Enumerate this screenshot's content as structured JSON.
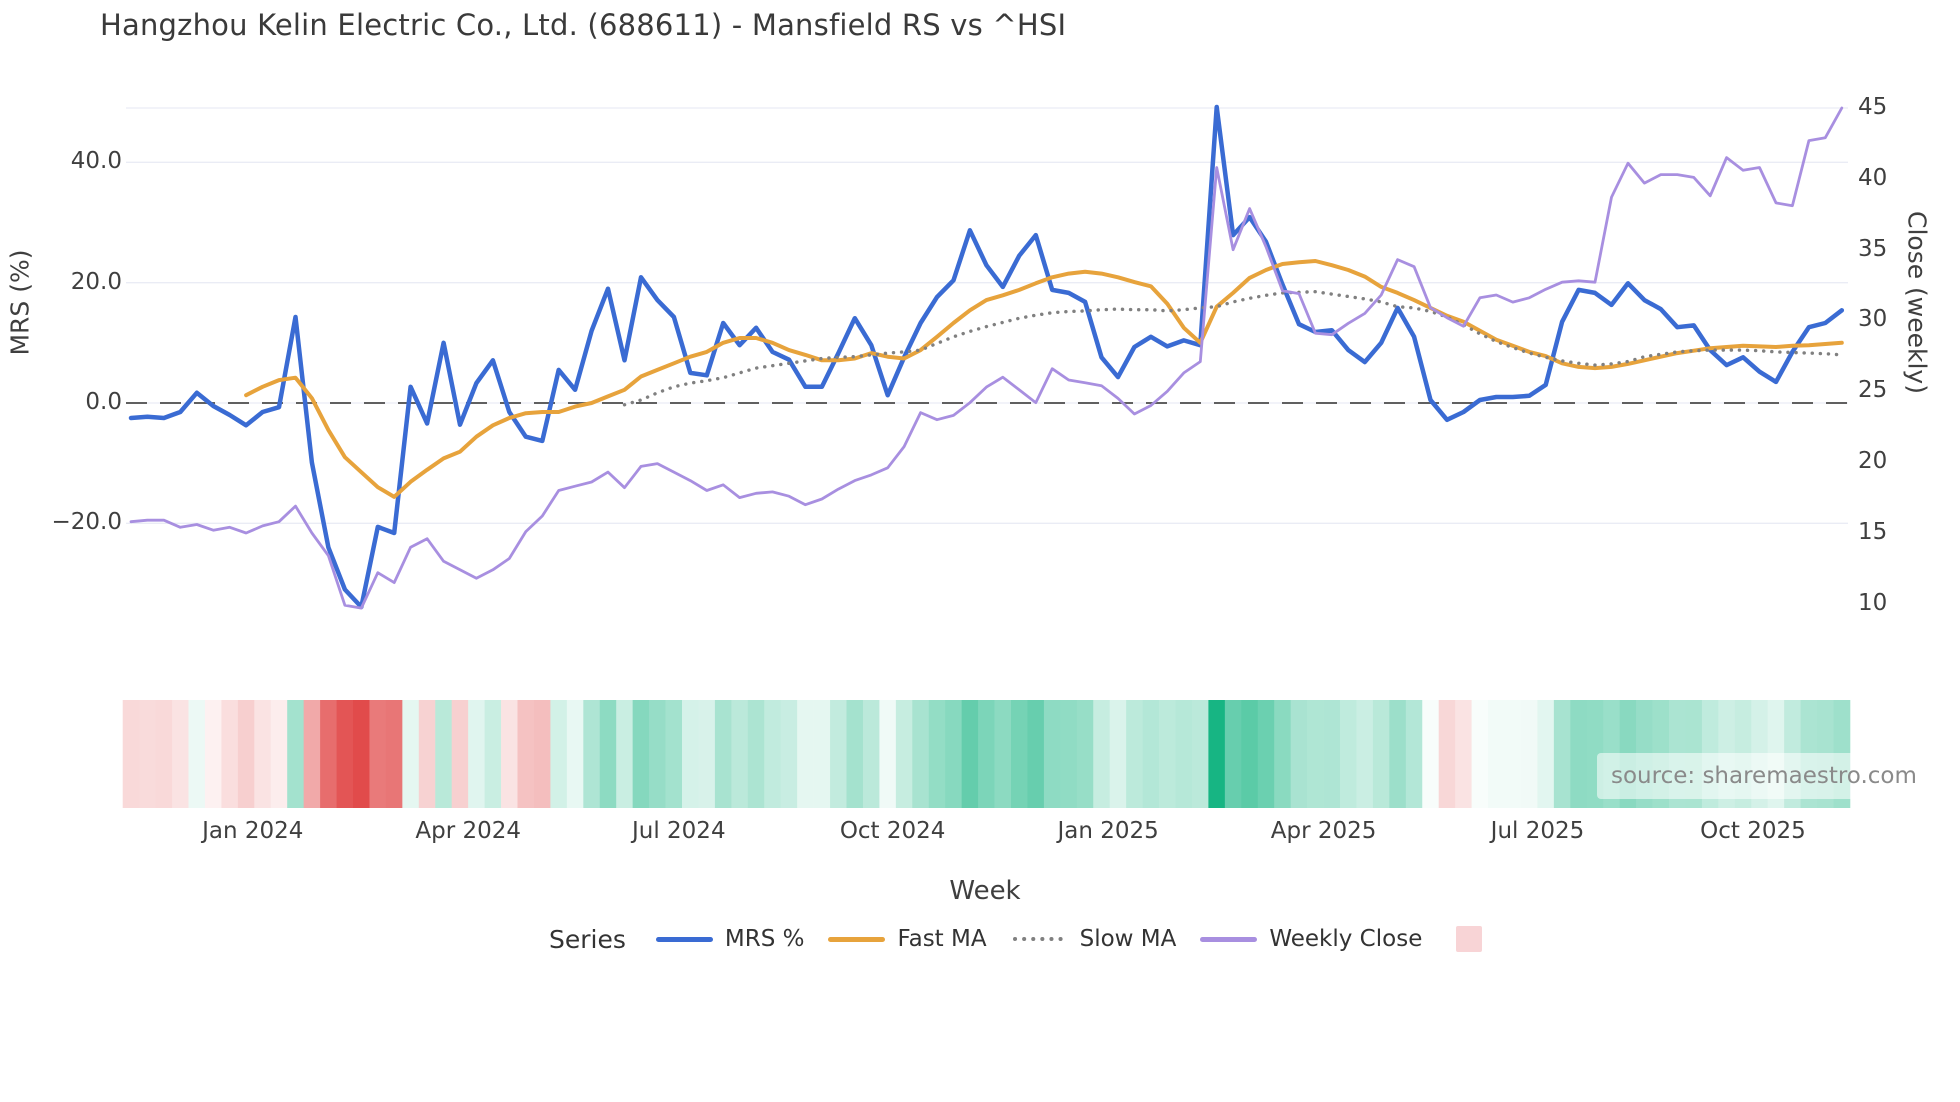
{
  "title": "Hangzhou Kelin Electric Co., Ltd. (688611) - Mansfield RS vs ^HSI",
  "source_note": "source: sharemaestro.com",
  "axes": {
    "left": {
      "title": "MRS (%)",
      "tick_labels": [
        "40.0",
        "20.0",
        "0.0",
        "−20.0"
      ],
      "tick_values": [
        40,
        20,
        0,
        -20
      ],
      "range_hint": [
        -42.7,
        54.5
      ]
    },
    "right": {
      "title": "Close (weekly)",
      "tick_labels": [
        "45",
        "40",
        "35",
        "30",
        "25",
        "20",
        "15",
        "10"
      ],
      "tick_values": [
        45,
        40,
        35,
        30,
        25,
        20,
        15,
        10
      ],
      "range_hint": [
        6.0,
        47.3
      ]
    },
    "x": {
      "title": "Week",
      "tick_labels": [
        "Jan 2024",
        "Apr 2024",
        "Jul 2024",
        "Oct 2024",
        "Jan 2025",
        "Apr 2025",
        "Jul 2025",
        "Oct 2025"
      ],
      "tick_week_indices": [
        7.4,
        20.5,
        33.3,
        46.3,
        59.4,
        72.5,
        85.5,
        98.6
      ]
    }
  },
  "legend": {
    "title": "Series",
    "items": [
      {
        "label": "MRS %",
        "color": "#3a6bd3",
        "style": "solid"
      },
      {
        "label": "Fast MA",
        "color": "#e7a33c",
        "style": "solid"
      },
      {
        "label": "Slow MA",
        "color": "#808080",
        "style": "dotted"
      },
      {
        "label": "Weekly Close",
        "color": "#a88fe0",
        "style": "solid"
      }
    ],
    "heatmap_swatch_color": "#f8d4d6"
  },
  "colors": {
    "grid": "#eaecf5",
    "zero_line": "#606060",
    "heat_positive": "#17b583",
    "heat_negative": "#e14b4b",
    "text_dark": "#3a3a3a",
    "text_tick": "#3f3f3f",
    "source_text": "#8a8a8a"
  },
  "chart_data": {
    "type": "line",
    "x_unit": "week_index",
    "n_weeks": 105,
    "x_tick_note": "weekly data, quarterly tick labels shown on axis",
    "grid": true,
    "legend_position": "bottom",
    "zero_reference_line": 0,
    "heatmap_strip": {
      "encodes": "MRS % per week, red negative / green positive",
      "position": "below plot"
    },
    "series": [
      {
        "name": "MRS %",
        "axis": "left",
        "color": "#3a6bd3",
        "style": "solid",
        "width": 4.5,
        "values": [
          -2.5,
          -2.3,
          -2.5,
          -1.5,
          1.7,
          -0.5,
          -2.0,
          -3.7,
          -1.5,
          -0.7,
          14.3,
          -9.9,
          -24.0,
          -31.0,
          -33.9,
          -20.6,
          -21.6,
          2.7,
          -3.4,
          10.0,
          -3.6,
          3.3,
          7.1,
          -1.5,
          -5.6,
          -6.3,
          5.5,
          2.2,
          12.0,
          19.0,
          7.1,
          20.9,
          17.1,
          14.3,
          5.0,
          4.6,
          13.3,
          9.6,
          12.5,
          8.5,
          7.2,
          2.7,
          2.7,
          8.3,
          14.1,
          9.6,
          1.3,
          7.6,
          13.3,
          17.6,
          20.4,
          28.7,
          22.9,
          19.3,
          24.5,
          27.9,
          18.8,
          18.3,
          16.8,
          7.6,
          4.3,
          9.3,
          11.0,
          9.4,
          10.4,
          9.6,
          49.2,
          27.9,
          30.9,
          26.8,
          19.7,
          13.1,
          11.8,
          12.1,
          8.8,
          6.8,
          10.0,
          15.8,
          11.0,
          0.5,
          -2.8,
          -1.5,
          0.5,
          1.0,
          1.0,
          1.2,
          3.0,
          13.5,
          18.8,
          18.3,
          16.3,
          19.9,
          17.1,
          15.6,
          12.6,
          12.9,
          8.8,
          6.3,
          7.6,
          5.2,
          3.5,
          8.5,
          12.6,
          13.3,
          15.4
        ]
      },
      {
        "name": "Fast MA",
        "axis": "left",
        "color": "#e7a33c",
        "style": "solid",
        "width": 4,
        "values": [
          null,
          null,
          null,
          null,
          null,
          null,
          null,
          1.3,
          2.7,
          3.8,
          4.2,
          0.8,
          -4.5,
          -9.0,
          -11.5,
          -14.0,
          -15.6,
          -13.1,
          -11.1,
          -9.2,
          -8.1,
          -5.6,
          -3.7,
          -2.5,
          -1.7,
          -1.5,
          -1.5,
          -0.6,
          0.0,
          1.1,
          2.2,
          4.4,
          5.5,
          6.6,
          7.7,
          8.5,
          10.0,
          10.8,
          10.8,
          10.0,
          8.8,
          8.0,
          7.1,
          7.1,
          7.4,
          8.3,
          7.7,
          7.4,
          8.8,
          11.0,
          13.3,
          15.4,
          17.1,
          17.9,
          18.8,
          19.9,
          20.9,
          21.5,
          21.8,
          21.5,
          20.9,
          20.1,
          19.4,
          16.5,
          12.5,
          10.0,
          16.0,
          18.3,
          20.8,
          22.1,
          23.1,
          23.4,
          23.6,
          22.9,
          22.1,
          21.0,
          19.3,
          18.3,
          17.1,
          15.8,
          14.5,
          13.5,
          12.0,
          10.5,
          9.5,
          8.5,
          7.8,
          6.6,
          6.0,
          5.8,
          6.0,
          6.5,
          7.1,
          7.7,
          8.3,
          8.7,
          9.1,
          9.3,
          9.5,
          9.4,
          9.3,
          9.5,
          9.6,
          9.8,
          10.0
        ]
      },
      {
        "name": "Slow MA",
        "axis": "left",
        "color": "#808080",
        "style": "dotted",
        "width": 3.4,
        "values": [
          null,
          null,
          null,
          null,
          null,
          null,
          null,
          null,
          null,
          null,
          null,
          null,
          null,
          null,
          null,
          null,
          null,
          null,
          null,
          null,
          null,
          null,
          null,
          null,
          null,
          null,
          null,
          null,
          null,
          null,
          -0.3,
          0.5,
          1.7,
          2.7,
          3.3,
          3.7,
          4.2,
          5.0,
          5.8,
          6.2,
          6.6,
          7.0,
          7.4,
          7.6,
          7.7,
          8.0,
          8.3,
          8.5,
          8.8,
          9.9,
          11.0,
          11.9,
          12.7,
          13.4,
          14.1,
          14.6,
          15.0,
          15.2,
          15.3,
          15.5,
          15.6,
          15.5,
          15.5,
          15.3,
          15.5,
          15.8,
          16.0,
          16.8,
          17.4,
          17.9,
          18.3,
          18.4,
          18.5,
          18.1,
          17.7,
          17.3,
          16.8,
          16.0,
          15.8,
          15.2,
          14.3,
          13.0,
          11.5,
          10.2,
          9.2,
          8.3,
          7.6,
          7.0,
          6.6,
          6.3,
          6.5,
          6.9,
          7.7,
          8.1,
          8.5,
          8.7,
          8.8,
          8.8,
          8.8,
          8.7,
          8.5,
          8.4,
          8.3,
          8.2,
          8.0
        ]
      },
      {
        "name": "Weekly Close",
        "axis": "right",
        "color": "#a88fe0",
        "style": "solid",
        "width": 2.8,
        "values": [
          15.8,
          15.9,
          15.9,
          15.4,
          15.6,
          15.2,
          15.4,
          15.0,
          15.5,
          15.8,
          16.9,
          15.0,
          13.4,
          9.9,
          9.7,
          12.2,
          11.5,
          14.0,
          14.6,
          13.0,
          12.4,
          11.8,
          12.4,
          13.2,
          15.1,
          16.2,
          18.0,
          18.3,
          18.6,
          19.3,
          18.2,
          19.7,
          19.9,
          19.3,
          18.7,
          18.0,
          18.4,
          17.5,
          17.8,
          17.9,
          17.6,
          17.0,
          17.4,
          18.1,
          18.7,
          19.1,
          19.6,
          21.1,
          23.5,
          23.0,
          23.3,
          24.2,
          25.3,
          26.0,
          25.1,
          24.2,
          26.6,
          25.8,
          25.6,
          25.4,
          24.5,
          23.4,
          24.0,
          25.0,
          26.3,
          27.1,
          40.8,
          35.0,
          37.9,
          35.2,
          32.1,
          31.9,
          29.1,
          29.0,
          29.8,
          30.5,
          31.8,
          34.3,
          33.8,
          30.9,
          30.2,
          29.6,
          31.6,
          31.8,
          31.3,
          31.6,
          32.2,
          32.7,
          32.8,
          32.7,
          38.7,
          41.1,
          39.7,
          40.3,
          40.3,
          40.1,
          38.8,
          41.5,
          40.6,
          40.8,
          38.3,
          38.1,
          42.7,
          42.9,
          45.0
        ]
      }
    ]
  }
}
